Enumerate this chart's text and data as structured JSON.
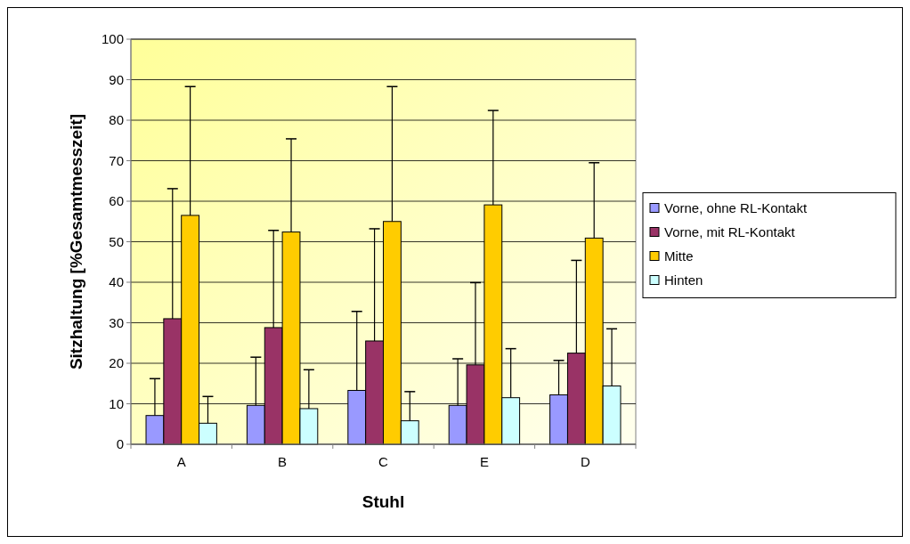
{
  "chart_data": {
    "type": "bar",
    "xlabel": "Stuhl",
    "ylabel": "Sitzhaltung [%Gesamtmesszeit]",
    "categories": [
      "A",
      "B",
      "C",
      "E",
      "D"
    ],
    "series": [
      {
        "name": "Vorne, ohne RL-Kontakt",
        "color": "#9999ff",
        "values": [
          7.1,
          9.6,
          13.3,
          9.6,
          12.2
        ],
        "errors": [
          [
            7.1,
            16.2
          ],
          [
            9.6,
            21.5
          ],
          [
            13.3,
            32.8
          ],
          [
            9.6,
            21.1
          ],
          [
            12.2,
            20.7
          ]
        ]
      },
      {
        "name": "Vorne, mit RL-Kontakt",
        "color": "#993366",
        "values": [
          31.0,
          28.8,
          25.5,
          19.6,
          22.5
        ],
        "errors": [
          [
            31.0,
            63.1
          ],
          [
            28.8,
            52.8
          ],
          [
            25.5,
            53.2
          ],
          [
            19.6,
            39.9
          ],
          [
            22.5,
            45.4
          ]
        ]
      },
      {
        "name": "Mitte",
        "color": "#ffcc00",
        "values": [
          56.5,
          52.4,
          55.0,
          59.1,
          50.9
        ],
        "errors": [
          [
            56.5,
            88.3
          ],
          [
            52.4,
            75.4
          ],
          [
            55.0,
            88.3
          ],
          [
            59.1,
            82.4
          ],
          [
            50.9,
            69.5
          ]
        ]
      },
      {
        "name": "Hinten",
        "color": "#ccffff",
        "values": [
          5.2,
          8.8,
          5.8,
          11.5,
          14.4
        ],
        "errors": [
          [
            5.2,
            11.8
          ],
          [
            8.8,
            18.4
          ],
          [
            5.8,
            13.0
          ],
          [
            11.5,
            23.6
          ],
          [
            14.4,
            28.5
          ]
        ]
      }
    ],
    "ylim": [
      0,
      100
    ],
    "yticks": [
      0,
      10,
      20,
      30,
      40,
      50,
      60,
      70,
      80,
      90,
      100
    ],
    "grid": "y",
    "legend": "right"
  }
}
